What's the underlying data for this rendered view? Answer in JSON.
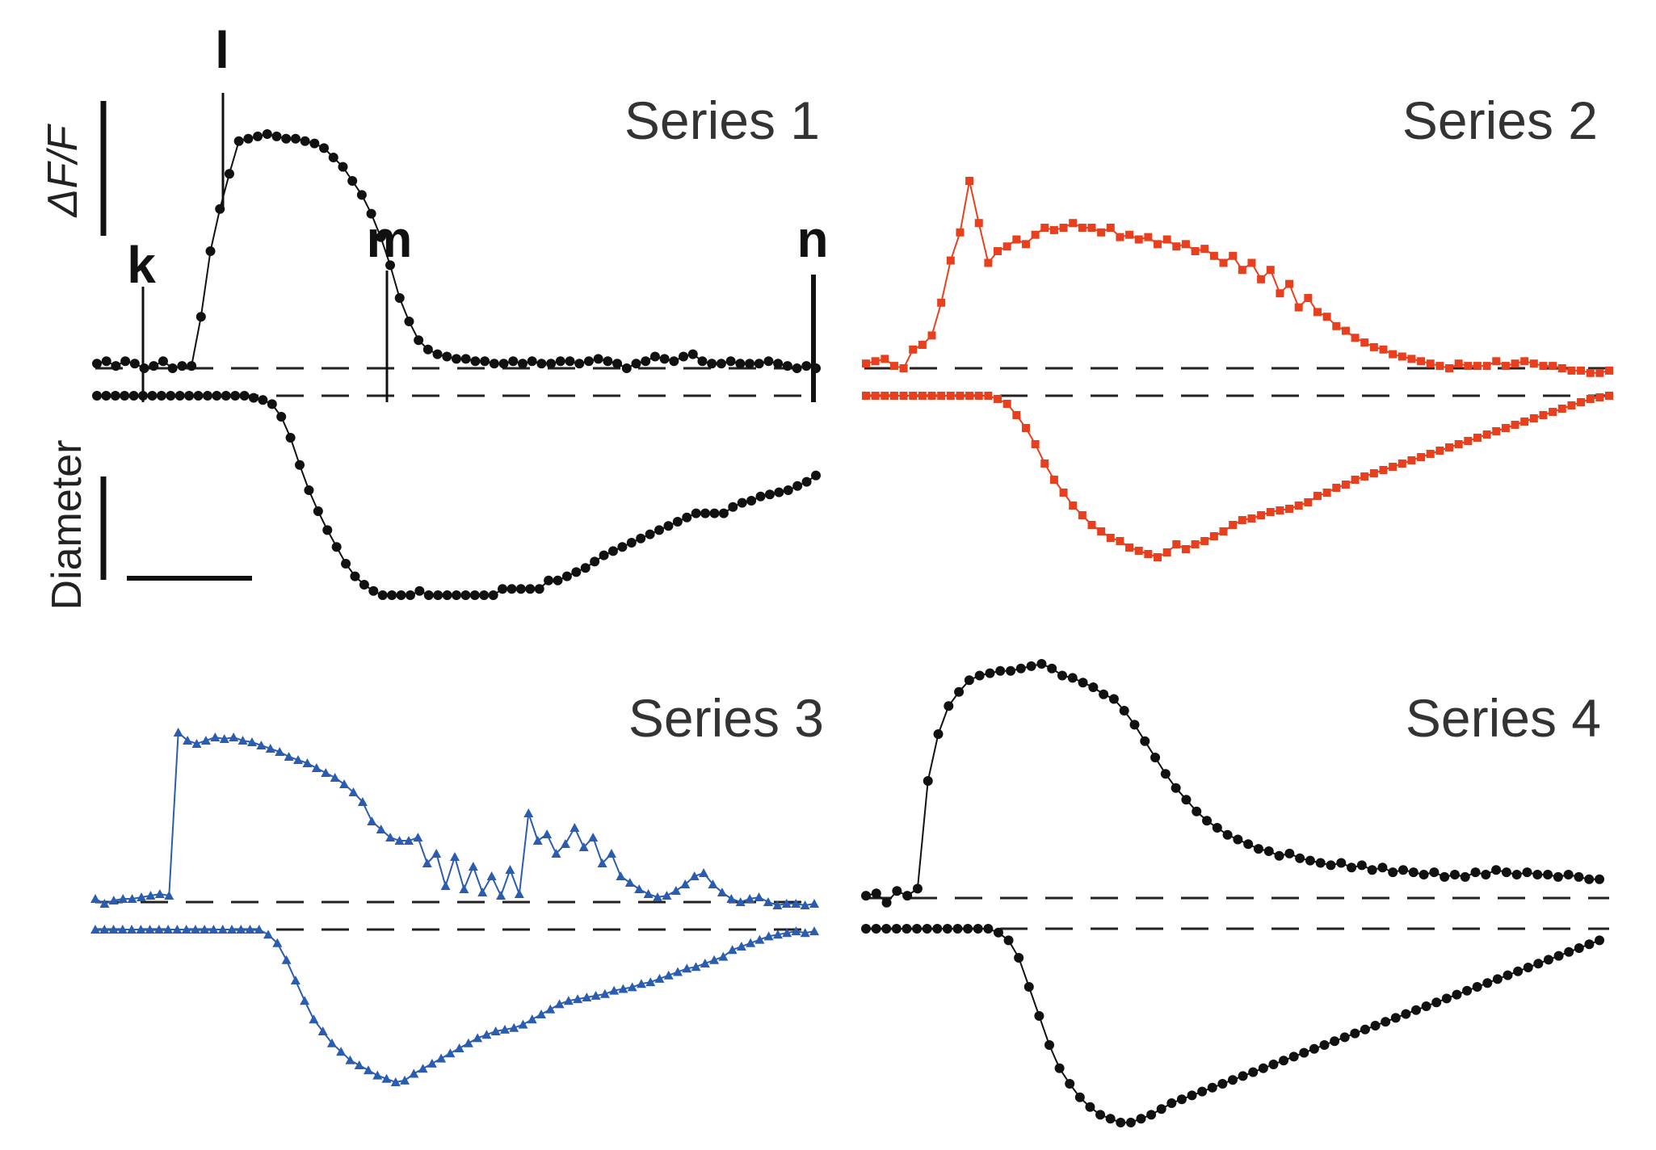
{
  "chart_data": [
    {
      "type": "scatter",
      "title": "Series 1",
      "color": "#111111",
      "marker": "circle",
      "markers": [
        "k",
        "l",
        "m",
        "n"
      ],
      "scale_bars": {
        "top_label": "ΔF/F",
        "bottom_label": "Diameter"
      },
      "traces": [
        {
          "role": "ΔF/F",
          "values": [
            0.02,
            0.03,
            0.01,
            0.03,
            0.02,
            0,
            0.01,
            0.03,
            0,
            0.01,
            0.01,
            0.22,
            0.5,
            0.68,
            0.83,
            0.97,
            0.98,
            0.99,
            1,
            0.99,
            0.98,
            0.98,
            0.97,
            0.96,
            0.94,
            0.9,
            0.86,
            0.8,
            0.74,
            0.66,
            0.56,
            0.44,
            0.3,
            0.2,
            0.12,
            0.08,
            0.06,
            0.05,
            0.04,
            0.04,
            0.03,
            0.03,
            0.02,
            0.02,
            0.03,
            0.02,
            0.03,
            0.02,
            0.02,
            0.03,
            0.03,
            0.02,
            0.03,
            0.04,
            0.03,
            0.02,
            0,
            0.02,
            0.03,
            0.05,
            0.04,
            0.03,
            0.05,
            0.06,
            0.03,
            0.02,
            0.02,
            0.03,
            0.02,
            0.02,
            0.02,
            0.03,
            0.02,
            0.01,
            0,
            0.01,
            0
          ]
        },
        {
          "role": "Diameter",
          "values": [
            0,
            0,
            0,
            0,
            0,
            0,
            0,
            0,
            0,
            0,
            0,
            0,
            0,
            0,
            0,
            0,
            0,
            -0.01,
            -0.02,
            -0.04,
            -0.1,
            -0.2,
            -0.33,
            -0.45,
            -0.55,
            -0.64,
            -0.72,
            -0.8,
            -0.86,
            -0.9,
            -0.93,
            -0.95,
            -0.95,
            -0.95,
            -0.95,
            -0.93,
            -0.95,
            -0.95,
            -0.95,
            -0.95,
            -0.95,
            -0.95,
            -0.95,
            -0.95,
            -0.92,
            -0.92,
            -0.92,
            -0.92,
            -0.92,
            -0.88,
            -0.88,
            -0.86,
            -0.84,
            -0.82,
            -0.79,
            -0.76,
            -0.74,
            -0.72,
            -0.7,
            -0.68,
            -0.66,
            -0.64,
            -0.62,
            -0.6,
            -0.58,
            -0.56,
            -0.56,
            -0.56,
            -0.56,
            -0.53,
            -0.51,
            -0.5,
            -0.48,
            -0.47,
            -0.46,
            -0.45,
            -0.43,
            -0.41,
            -0.38
          ]
        }
      ]
    },
    {
      "type": "scatter",
      "title": "Series 2",
      "color": "#e8401e",
      "marker": "square",
      "traces": [
        {
          "role": "ΔF/F",
          "values": [
            0.02,
            0.03,
            0.04,
            0.01,
            0,
            0.08,
            0.1,
            0.14,
            0.28,
            0.46,
            0.58,
            0.8,
            0.62,
            0.45,
            0.5,
            0.52,
            0.55,
            0.53,
            0.57,
            0.6,
            0.59,
            0.6,
            0.62,
            0.6,
            0.6,
            0.58,
            0.6,
            0.56,
            0.57,
            0.55,
            0.56,
            0.53,
            0.55,
            0.52,
            0.53,
            0.5,
            0.51,
            0.48,
            0.45,
            0.48,
            0.42,
            0.45,
            0.38,
            0.42,
            0.32,
            0.36,
            0.26,
            0.3,
            0.24,
            0.22,
            0.18,
            0.16,
            0.13,
            0.11,
            0.09,
            0.08,
            0.06,
            0.05,
            0.04,
            0.03,
            0.02,
            0.01,
            0,
            0.02,
            0.01,
            0.01,
            0.01,
            0.03,
            0.01,
            0.02,
            0.03,
            0.02,
            0.01,
            0.01,
            0,
            -0.01,
            -0.01,
            -0.02,
            -0.02,
            -0.01
          ]
        },
        {
          "role": "Diameter",
          "values": [
            0,
            0,
            0,
            0,
            0,
            0,
            0,
            0,
            0,
            0,
            0,
            0,
            0,
            0,
            -0.02,
            -0.05,
            -0.12,
            -0.2,
            -0.3,
            -0.42,
            -0.52,
            -0.6,
            -0.68,
            -0.74,
            -0.8,
            -0.84,
            -0.88,
            -0.9,
            -0.94,
            -0.96,
            -0.98,
            -1,
            -0.97,
            -0.92,
            -0.95,
            -0.92,
            -0.9,
            -0.87,
            -0.84,
            -0.8,
            -0.77,
            -0.76,
            -0.74,
            -0.72,
            -0.71,
            -0.7,
            -0.68,
            -0.66,
            -0.62,
            -0.6,
            -0.57,
            -0.55,
            -0.52,
            -0.5,
            -0.48,
            -0.46,
            -0.44,
            -0.42,
            -0.4,
            -0.38,
            -0.36,
            -0.34,
            -0.32,
            -0.3,
            -0.28,
            -0.26,
            -0.24,
            -0.22,
            -0.2,
            -0.18,
            -0.16,
            -0.14,
            -0.12,
            -0.1,
            -0.08,
            -0.06,
            -0.04,
            -0.02,
            -0.01,
            0
          ]
        }
      ]
    },
    {
      "type": "scatter",
      "title": "Series 3",
      "color": "#2a5db0",
      "marker": "triangle",
      "traces": [
        {
          "role": "ΔF/F",
          "values": [
            0.02,
            -0.01,
            0.01,
            0.02,
            0.02,
            0.03,
            0.04,
            0.05,
            0.04,
            1.05,
            1,
            0.98,
            1,
            1.02,
            1.01,
            1.02,
            1,
            0.99,
            0.97,
            0.95,
            0.93,
            0.9,
            0.88,
            0.86,
            0.83,
            0.8,
            0.77,
            0.73,
            0.68,
            0.62,
            0.5,
            0.45,
            0.4,
            0.38,
            0.38,
            0.4,
            0.24,
            0.3,
            0.1,
            0.28,
            0.08,
            0.22,
            0.06,
            0.16,
            0.04,
            0.2,
            0.05,
            0.55,
            0.38,
            0.42,
            0.3,
            0.36,
            0.46,
            0.34,
            0.4,
            0.24,
            0.3,
            0.16,
            0.12,
            0.08,
            0.05,
            0.03,
            0.04,
            0.07,
            0.11,
            0.16,
            0.18,
            0.11,
            0.06,
            0.02,
            0,
            0.02,
            0.03,
            0,
            -0.02,
            -0.01,
            -0.01,
            -0.02,
            -0.01
          ]
        },
        {
          "role": "Diameter",
          "values": [
            0,
            0,
            0,
            0,
            0,
            0,
            0,
            0,
            0,
            0,
            0,
            0,
            0,
            0,
            0,
            0,
            0,
            0,
            0,
            -0.03,
            -0.08,
            -0.18,
            -0.3,
            -0.42,
            -0.53,
            -0.6,
            -0.67,
            -0.72,
            -0.77,
            -0.8,
            -0.83,
            -0.86,
            -0.88,
            -0.9,
            -0.89,
            -0.85,
            -0.82,
            -0.79,
            -0.76,
            -0.73,
            -0.7,
            -0.67,
            -0.64,
            -0.62,
            -0.6,
            -0.59,
            -0.58,
            -0.56,
            -0.53,
            -0.5,
            -0.47,
            -0.44,
            -0.42,
            -0.41,
            -0.4,
            -0.39,
            -0.38,
            -0.36,
            -0.35,
            -0.34,
            -0.32,
            -0.31,
            -0.29,
            -0.27,
            -0.25,
            -0.23,
            -0.22,
            -0.2,
            -0.18,
            -0.16,
            -0.12,
            -0.1,
            -0.08,
            -0.06,
            -0.04,
            -0.03,
            -0.02,
            -0.01,
            -0.02,
            -0.01
          ]
        }
      ]
    },
    {
      "type": "scatter",
      "title": "Series 4",
      "color": "#111111",
      "marker": "circle",
      "traces": [
        {
          "role": "ΔF/F",
          "values": [
            0.01,
            0.02,
            -0.02,
            0.03,
            0.01,
            0.04,
            0.5,
            0.7,
            0.82,
            0.88,
            0.93,
            0.95,
            0.96,
            0.97,
            0.97,
            0.98,
            0.99,
            1,
            0.98,
            0.95,
            0.94,
            0.92,
            0.9,
            0.87,
            0.85,
            0.8,
            0.74,
            0.67,
            0.6,
            0.53,
            0.47,
            0.42,
            0.37,
            0.33,
            0.3,
            0.27,
            0.25,
            0.23,
            0.21,
            0.2,
            0.18,
            0.19,
            0.17,
            0.16,
            0.15,
            0.14,
            0.15,
            0.13,
            0.14,
            0.12,
            0.13,
            0.11,
            0.12,
            0.11,
            0.1,
            0.11,
            0.09,
            0.1,
            0.09,
            0.11,
            0.1,
            0.12,
            0.11,
            0.1,
            0.11,
            0.1,
            0.1,
            0.09,
            0.1,
            0.09,
            0.08,
            0.08
          ]
        },
        {
          "role": "Diameter",
          "values": [
            0,
            0,
            0,
            0,
            0,
            0,
            0,
            0,
            0,
            0,
            0,
            0,
            0,
            -0.02,
            -0.06,
            -0.15,
            -0.3,
            -0.45,
            -0.6,
            -0.72,
            -0.8,
            -0.87,
            -0.92,
            -0.96,
            -0.98,
            -1,
            -1,
            -0.98,
            -0.96,
            -0.93,
            -0.9,
            -0.88,
            -0.86,
            -0.84,
            -0.82,
            -0.8,
            -0.78,
            -0.76,
            -0.74,
            -0.72,
            -0.7,
            -0.68,
            -0.66,
            -0.64,
            -0.62,
            -0.6,
            -0.58,
            -0.56,
            -0.54,
            -0.52,
            -0.5,
            -0.48,
            -0.46,
            -0.44,
            -0.42,
            -0.4,
            -0.38,
            -0.36,
            -0.34,
            -0.32,
            -0.3,
            -0.28,
            -0.26,
            -0.24,
            -0.22,
            -0.2,
            -0.18,
            -0.16,
            -0.14,
            -0.12,
            -0.1,
            -0.08,
            -0.06
          ]
        }
      ]
    }
  ]
}
